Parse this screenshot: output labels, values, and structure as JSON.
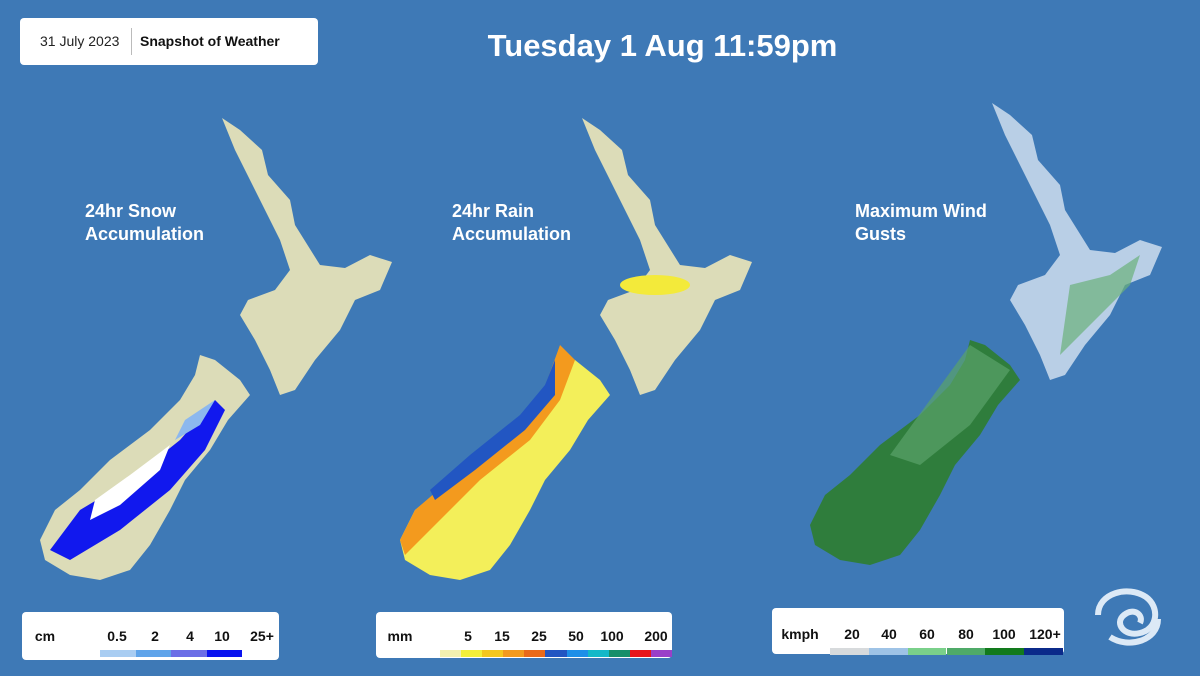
{
  "header": {
    "date": "31 July 2023",
    "label": "Snapshot of Weather"
  },
  "title": "Tuesday 1 Aug 11:59pm",
  "panels": [
    {
      "title": "24hr Snow Accumulation",
      "legend": {
        "unit": "cm",
        "labels": [
          "0.5",
          "2",
          "4",
          "10",
          "25+"
        ]
      }
    },
    {
      "title": "24hr Rain Accumulation",
      "legend": {
        "unit": "mm",
        "labels": [
          "5",
          "15",
          "25",
          "50",
          "100",
          "200"
        ]
      }
    },
    {
      "title": "Maximum Wind Gusts",
      "legend": {
        "unit": "kmph",
        "labels": [
          "20",
          "40",
          "60",
          "80",
          "100",
          "120+"
        ]
      }
    }
  ]
}
